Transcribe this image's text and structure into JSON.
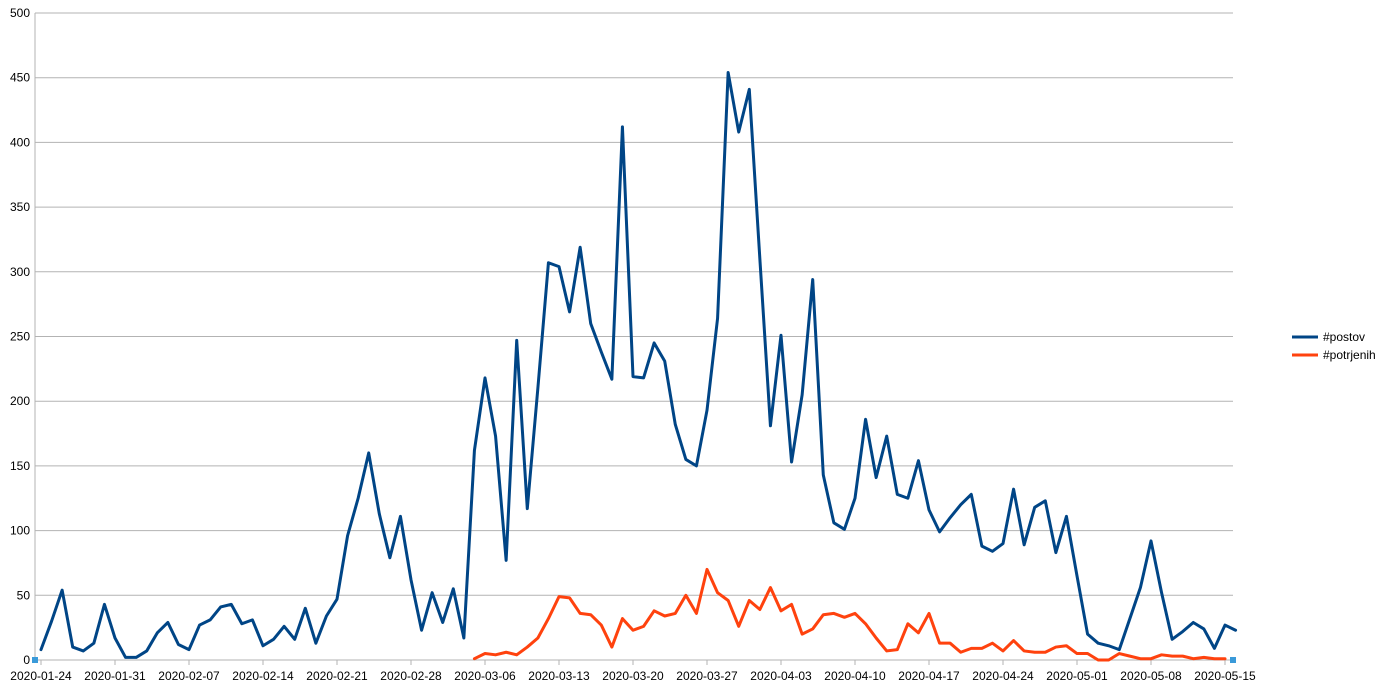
{
  "chart_data": {
    "type": "line",
    "title": "",
    "xlabel": "",
    "ylabel": "",
    "ylim": [
      0,
      500
    ],
    "y_ticks": [
      "0",
      "50",
      "100",
      "150",
      "200",
      "250",
      "300",
      "350",
      "400",
      "450",
      "500"
    ],
    "x_tick_labels": [
      "2020-01-24",
      "2020-01-31",
      "2020-02-07",
      "2020-02-14",
      "2020-02-21",
      "2020-02-28",
      "2020-03-06",
      "2020-03-13",
      "2020-03-20",
      "2020-03-27",
      "2020-04-03",
      "2020-04-10",
      "2020-04-17",
      "2020-04-24",
      "2020-05-01",
      "2020-05-08",
      "2020-05-15"
    ],
    "x_start": "2020-01-24",
    "x_end": "2020-05-15",
    "grid": "horizontal",
    "legend_position": "right",
    "series": [
      {
        "name": "#postov",
        "color": "#004586",
        "start": "2020-01-24",
        "values": [
          8,
          30,
          54,
          10,
          7,
          13,
          43,
          17,
          2,
          2,
          7,
          21,
          29,
          12,
          8,
          27,
          31,
          41,
          43,
          28,
          31,
          11,
          16,
          26,
          16,
          40,
          13,
          34,
          47,
          96,
          125,
          160,
          113,
          79,
          111,
          62,
          23,
          52,
          29,
          55,
          17,
          162,
          218,
          173,
          77,
          247,
          117,
          210,
          307,
          304,
          269,
          319,
          260,
          238,
          217,
          412,
          219,
          218,
          245,
          231,
          182,
          155,
          150,
          193,
          264,
          454,
          408,
          441,
          310,
          181,
          251,
          153,
          205,
          294,
          143,
          106,
          101,
          125,
          186,
          141,
          173,
          128,
          125,
          154,
          116,
          99,
          110,
          120,
          128,
          88,
          84,
          90,
          132,
          89,
          118,
          123,
          83,
          111,
          65,
          20,
          13,
          11,
          8,
          32,
          56,
          92,
          52,
          16,
          22,
          29,
          24,
          9,
          27,
          23
        ]
      },
      {
        "name": "#potrjenih",
        "color": "#ff420e",
        "start": "2020-03-05",
        "values": [
          1,
          5,
          4,
          6,
          4,
          10,
          17,
          32,
          49,
          48,
          36,
          35,
          27,
          10,
          32,
          23,
          26,
          38,
          34,
          36,
          50,
          36,
          70,
          52,
          46,
          26,
          46,
          39,
          56,
          38,
          43,
          20,
          24,
          35,
          36,
          33,
          36,
          28,
          17,
          7,
          8,
          28,
          21,
          36,
          13,
          13,
          6,
          9,
          9,
          13,
          7,
          15,
          7,
          6,
          6,
          10,
          11,
          5,
          5,
          0,
          0,
          5,
          3,
          1,
          1,
          4,
          3,
          3,
          1,
          2,
          1,
          1
        ]
      }
    ]
  }
}
